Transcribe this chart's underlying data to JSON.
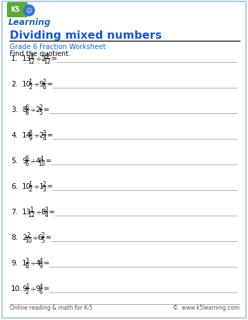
{
  "title": "Dividing mixed numbers",
  "subtitle": "Grade 6 Fraction Worksheet",
  "instruction": "Find the quotient.",
  "title_color": "#1a56c4",
  "subtitle_color": "#2266cc",
  "border_color": "#aaccdd",
  "background_color": "#ffffff",
  "footer_left": "Online reading & math for K-5",
  "footer_right": "©  www.k5learning.com",
  "problems_text": [
    [
      "1.",
      "13",
      "9",
      "12",
      "2",
      "9",
      "12"
    ],
    [
      "2.",
      "10",
      "1",
      "2",
      "9",
      "2",
      "6"
    ],
    [
      "3.",
      "8",
      "6",
      "8",
      "2",
      "2",
      "5"
    ],
    [
      "4.",
      "14",
      "8",
      "9",
      "2",
      "3",
      "4"
    ],
    [
      "5.",
      "9",
      "5",
      "6",
      "4",
      "4",
      "10"
    ],
    [
      "6.",
      "10",
      "1",
      "2",
      "1",
      "2",
      "3"
    ],
    [
      "7.",
      "13",
      "1",
      "12",
      "8",
      "3",
      "4"
    ],
    [
      "8.",
      "2",
      "2",
      "10",
      "6",
      "2",
      "5"
    ],
    [
      "9.",
      "1",
      "3",
      "8",
      "4",
      "4",
      "9"
    ],
    [
      "10.",
      "9",
      "1",
      "2",
      "9",
      "4",
      "6"
    ]
  ]
}
